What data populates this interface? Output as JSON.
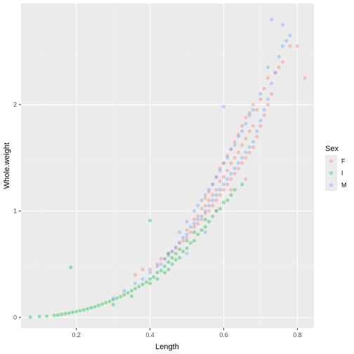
{
  "chart_data": {
    "type": "scatter",
    "xlabel": "Length",
    "ylabel": "Whole.weight",
    "xlim": [
      0.05,
      0.845
    ],
    "ylim": [
      -0.1,
      2.95
    ],
    "x_ticks": [
      0.2,
      0.4,
      0.6,
      0.8
    ],
    "y_ticks": [
      0,
      1,
      2
    ],
    "x_tick_labels": [
      "0.2",
      "0.4",
      "0.6",
      "0.8"
    ],
    "y_tick_labels": [
      "0",
      "1",
      "2"
    ],
    "grid": true,
    "background": "#ebebeb",
    "point_alpha": 0.35,
    "legend": {
      "title": "Sex",
      "placement": "right",
      "entries": [
        {
          "label": "F",
          "color": "#f8766d"
        },
        {
          "label": "I",
          "color": "#00ba38"
        },
        {
          "label": "M",
          "color": "#619cff"
        }
      ]
    },
    "series": [
      {
        "name": "F",
        "color": "#f8766d",
        "x": [
          0.36,
          0.38,
          0.4,
          0.42,
          0.43,
          0.44,
          0.45,
          0.46,
          0.47,
          0.48,
          0.49,
          0.5,
          0.5,
          0.51,
          0.52,
          0.52,
          0.53,
          0.53,
          0.54,
          0.54,
          0.55,
          0.55,
          0.55,
          0.56,
          0.56,
          0.56,
          0.57,
          0.57,
          0.57,
          0.58,
          0.58,
          0.58,
          0.59,
          0.59,
          0.59,
          0.6,
          0.6,
          0.6,
          0.61,
          0.61,
          0.61,
          0.62,
          0.62,
          0.62,
          0.63,
          0.63,
          0.63,
          0.64,
          0.64,
          0.64,
          0.65,
          0.65,
          0.65,
          0.66,
          0.66,
          0.66,
          0.67,
          0.67,
          0.67,
          0.68,
          0.68,
          0.68,
          0.69,
          0.69,
          0.7,
          0.7,
          0.71,
          0.71,
          0.72,
          0.72,
          0.73,
          0.74,
          0.75,
          0.76,
          0.78,
          0.8,
          0.82,
          0.62,
          0.58,
          0.66
        ],
        "y": [
          0.4,
          0.45,
          0.45,
          0.5,
          0.55,
          0.55,
          0.6,
          0.62,
          0.65,
          0.7,
          0.72,
          0.75,
          0.82,
          0.8,
          0.85,
          0.92,
          0.88,
          0.95,
          0.92,
          1.02,
          0.98,
          1.05,
          1.12,
          1.0,
          1.1,
          1.18,
          1.05,
          1.15,
          1.25,
          1.1,
          1.2,
          1.32,
          1.15,
          1.28,
          1.4,
          1.2,
          1.32,
          1.45,
          1.25,
          1.38,
          1.52,
          1.3,
          1.45,
          1.58,
          1.35,
          1.5,
          1.65,
          1.4,
          1.55,
          1.72,
          1.45,
          1.62,
          1.8,
          1.5,
          1.68,
          1.88,
          1.55,
          1.75,
          1.92,
          1.6,
          1.8,
          2.0,
          1.7,
          1.95,
          1.8,
          2.05,
          1.9,
          2.15,
          2.0,
          2.25,
          2.1,
          2.3,
          2.35,
          2.4,
          2.55,
          2.55,
          2.25,
          1.2,
          1.0,
          1.3
        ]
      },
      {
        "name": "I",
        "color": "#00ba38",
        "x": [
          0.075,
          0.1,
          0.12,
          0.14,
          0.15,
          0.16,
          0.17,
          0.18,
          0.19,
          0.2,
          0.21,
          0.22,
          0.23,
          0.24,
          0.25,
          0.26,
          0.27,
          0.28,
          0.29,
          0.3,
          0.31,
          0.32,
          0.33,
          0.34,
          0.35,
          0.36,
          0.37,
          0.38,
          0.39,
          0.4,
          0.4,
          0.41,
          0.42,
          0.42,
          0.43,
          0.44,
          0.44,
          0.45,
          0.45,
          0.46,
          0.46,
          0.47,
          0.47,
          0.48,
          0.48,
          0.49,
          0.5,
          0.5,
          0.51,
          0.52,
          0.52,
          0.53,
          0.54,
          0.55,
          0.55,
          0.56,
          0.57,
          0.58,
          0.59,
          0.6,
          0.61,
          0.62,
          0.63,
          0.65,
          0.185,
          0.4,
          0.3,
          0.35,
          0.45
        ],
        "y": [
          0.002,
          0.008,
          0.012,
          0.018,
          0.022,
          0.028,
          0.035,
          0.04,
          0.048,
          0.055,
          0.062,
          0.07,
          0.08,
          0.09,
          0.1,
          0.112,
          0.125,
          0.138,
          0.15,
          0.165,
          0.18,
          0.195,
          0.212,
          0.23,
          0.25,
          0.27,
          0.29,
          0.31,
          0.33,
          0.32,
          0.36,
          0.38,
          0.36,
          0.42,
          0.44,
          0.42,
          0.48,
          0.45,
          0.52,
          0.5,
          0.56,
          0.54,
          0.6,
          0.56,
          0.64,
          0.62,
          0.65,
          0.72,
          0.7,
          0.72,
          0.8,
          0.78,
          0.82,
          0.85,
          0.92,
          0.9,
          0.95,
          1.0,
          1.02,
          1.08,
          1.1,
          1.15,
          1.2,
          1.25,
          0.47,
          0.91,
          0.12,
          0.2,
          0.6
        ]
      },
      {
        "name": "M",
        "color": "#619cff",
        "x": [
          0.3,
          0.33,
          0.36,
          0.38,
          0.4,
          0.42,
          0.43,
          0.44,
          0.45,
          0.46,
          0.47,
          0.48,
          0.48,
          0.49,
          0.5,
          0.5,
          0.51,
          0.52,
          0.52,
          0.53,
          0.53,
          0.54,
          0.54,
          0.55,
          0.55,
          0.56,
          0.56,
          0.57,
          0.57,
          0.58,
          0.58,
          0.59,
          0.59,
          0.6,
          0.6,
          0.61,
          0.61,
          0.62,
          0.62,
          0.63,
          0.63,
          0.64,
          0.64,
          0.65,
          0.65,
          0.66,
          0.66,
          0.67,
          0.67,
          0.68,
          0.68,
          0.69,
          0.7,
          0.7,
          0.71,
          0.72,
          0.72,
          0.73,
          0.74,
          0.75,
          0.76,
          0.77,
          0.78,
          0.73,
          0.76,
          0.6,
          0.55,
          0.5
        ],
        "y": [
          0.18,
          0.25,
          0.32,
          0.36,
          0.42,
          0.48,
          0.5,
          0.55,
          0.58,
          0.62,
          0.66,
          0.7,
          0.8,
          0.75,
          0.78,
          0.9,
          0.85,
          0.88,
          1.0,
          0.92,
          1.05,
          0.95,
          1.1,
          1.0,
          1.15,
          1.05,
          1.2,
          1.1,
          1.25,
          1.15,
          1.32,
          1.2,
          1.38,
          1.25,
          1.45,
          1.3,
          1.5,
          1.35,
          1.58,
          1.4,
          1.62,
          1.45,
          1.7,
          1.5,
          1.75,
          1.55,
          1.82,
          1.6,
          1.9,
          1.65,
          1.95,
          1.75,
          1.85,
          2.1,
          1.95,
          2.05,
          2.35,
          2.2,
          2.3,
          2.45,
          2.55,
          2.6,
          2.65,
          2.8,
          2.75,
          1.98,
          0.8,
          0.6
        ]
      }
    ]
  }
}
